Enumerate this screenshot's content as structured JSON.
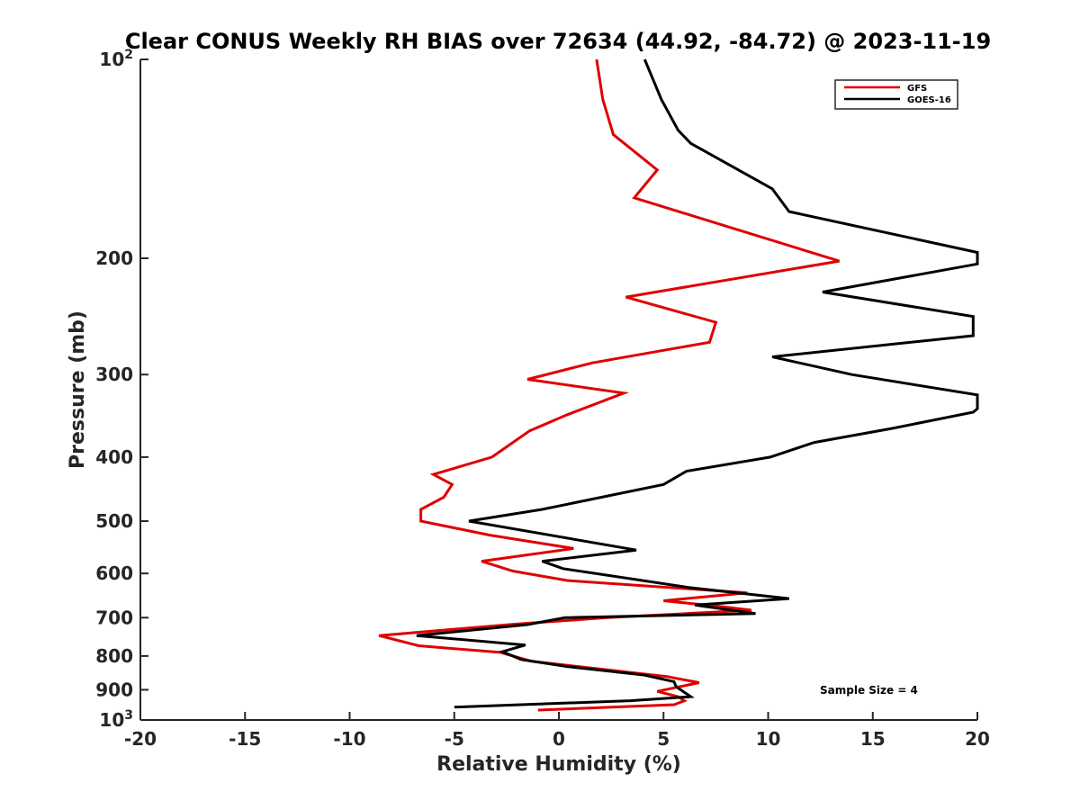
{
  "chart_data": {
    "type": "line",
    "title": "Clear CONUS Weekly RH BIAS over 72634 (44.92, -84.72) @ 2023-11-19",
    "xlabel": "Relative Humidity (%)",
    "ylabel": "Pressure (mb)",
    "xlim": [
      -20,
      20
    ],
    "ylim": [
      100,
      1000
    ],
    "yscale": "log",
    "y_reversed": true,
    "xticks": [
      "-20",
      "-15",
      "-10",
      "-5",
      "0",
      "5",
      "10",
      "15",
      "20"
    ],
    "yticks": [
      {
        "value": 100,
        "base": "10",
        "exp": "2"
      },
      {
        "value": 200,
        "label": "200"
      },
      {
        "value": 300,
        "label": "300"
      },
      {
        "value": 400,
        "label": "400"
      },
      {
        "value": 500,
        "label": "500"
      },
      {
        "value": 600,
        "label": "600"
      },
      {
        "value": 700,
        "label": "700"
      },
      {
        "value": 800,
        "label": "800"
      },
      {
        "value": 900,
        "label": "900"
      },
      {
        "value": 1000,
        "base": "10",
        "exp": "3"
      }
    ],
    "legend_position": "top-right",
    "annotation": "Sample Size = 4",
    "series": [
      {
        "name": "GFS",
        "color": "#e00000",
        "points": [
          [
            1.8,
            100
          ],
          [
            2.1,
            115
          ],
          [
            2.6,
            130
          ],
          [
            4.7,
            147
          ],
          [
            3.6,
            162
          ],
          [
            13.4,
            202
          ],
          [
            3.2,
            229
          ],
          [
            7.5,
            250
          ],
          [
            7.2,
            268
          ],
          [
            1.6,
            288
          ],
          [
            -1.5,
            305
          ],
          [
            3.1,
            320
          ],
          [
            0.4,
            345
          ],
          [
            -1.4,
            365
          ],
          [
            -2.2,
            380
          ],
          [
            -3.2,
            400
          ],
          [
            -6.0,
            425
          ],
          [
            -5.1,
            440
          ],
          [
            -5.5,
            460
          ],
          [
            -6.6,
            480
          ],
          [
            -6.6,
            500
          ],
          [
            -3.3,
            525
          ],
          [
            0.7,
            550
          ],
          [
            -3.7,
            575
          ],
          [
            -2.2,
            595
          ],
          [
            0.4,
            615
          ],
          [
            9.0,
            642
          ],
          [
            5.0,
            660
          ],
          [
            7.5,
            672
          ],
          [
            9.2,
            682
          ],
          [
            2.3,
            700
          ],
          [
            -2.1,
            716
          ],
          [
            -8.6,
            745
          ],
          [
            -6.7,
            772
          ],
          [
            -2.8,
            790
          ],
          [
            -1.3,
            815
          ],
          [
            5.2,
            860
          ],
          [
            6.7,
            878
          ],
          [
            4.7,
            905
          ],
          [
            5.7,
            922
          ],
          [
            6.0,
            935
          ],
          [
            5.5,
            948
          ],
          [
            -1.0,
            966
          ]
        ]
      },
      {
        "name": "GOES-16",
        "color": "#000000",
        "points": [
          [
            4.1,
            100
          ],
          [
            4.9,
            115
          ],
          [
            5.7,
            128
          ],
          [
            6.3,
            134
          ],
          [
            10.2,
            157
          ],
          [
            11.0,
            170
          ],
          [
            20.0,
            196
          ],
          [
            20.0,
            204
          ],
          [
            12.6,
            225
          ],
          [
            19.8,
            245
          ],
          [
            19.8,
            262
          ],
          [
            10.2,
            282
          ],
          [
            14.0,
            300
          ],
          [
            20.0,
            322
          ],
          [
            20.0,
            338
          ],
          [
            19.8,
            342
          ],
          [
            15.9,
            362
          ],
          [
            12.2,
            380
          ],
          [
            10.1,
            400
          ],
          [
            6.1,
            420
          ],
          [
            5.0,
            440
          ],
          [
            -0.8,
            480
          ],
          [
            -4.3,
            500
          ],
          [
            3.7,
            553
          ],
          [
            -0.8,
            575
          ],
          [
            0.2,
            590
          ],
          [
            6.2,
            630
          ],
          [
            11.0,
            655
          ],
          [
            6.5,
            670
          ],
          [
            9.4,
            690
          ],
          [
            0.3,
            700
          ],
          [
            -1.5,
            717
          ],
          [
            -6.8,
            745
          ],
          [
            -1.6,
            770
          ],
          [
            -2.7,
            788
          ],
          [
            -1.8,
            810
          ],
          [
            0.4,
            830
          ],
          [
            4.1,
            855
          ],
          [
            5.5,
            875
          ],
          [
            5.6,
            890
          ],
          [
            6.3,
            922
          ],
          [
            3.4,
            935
          ],
          [
            -5.0,
            956
          ]
        ]
      }
    ]
  }
}
